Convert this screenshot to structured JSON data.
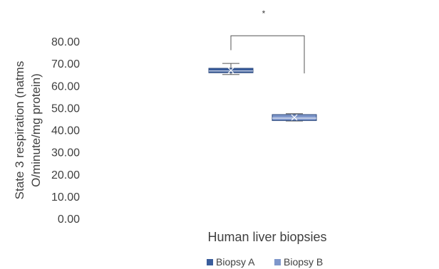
{
  "chart_data": {
    "type": "box",
    "xlabel": "Human liver biopsies",
    "ylabel_lines": [
      "State 3 respiration (natms",
      "O/minute/mg protein)"
    ],
    "ylim": [
      0,
      80
    ],
    "yticks": [
      "0.00",
      "10.00",
      "20.00",
      "30.00",
      "40.00",
      "50.00",
      "60.00",
      "70.00",
      "80.00"
    ],
    "ytick_values": [
      0,
      10,
      20,
      30,
      40,
      50,
      60,
      70,
      80
    ],
    "grid": false,
    "legend_position": "bottom",
    "series": [
      {
        "name": "Biopsy A",
        "color": "#3a5d9c",
        "min": 65,
        "q1": 65.8,
        "median": 66.6,
        "q3": 67.8,
        "max": 70,
        "mean": 66.8
      },
      {
        "name": "Biopsy B",
        "color": "#7f97cb",
        "min": 44,
        "q1": 44.2,
        "median": 45.3,
        "q3": 46.9,
        "max": 47.3,
        "mean": 45.6
      }
    ],
    "annotation": {
      "text": "*",
      "type": "significance-bracket"
    }
  }
}
